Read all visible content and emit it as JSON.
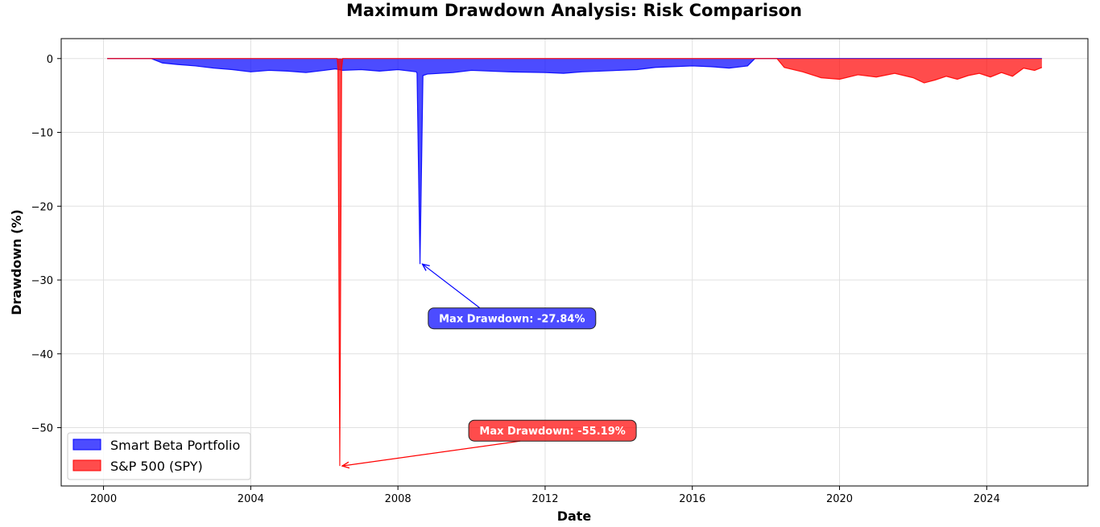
{
  "chart_data": {
    "type": "area",
    "title": "Maximum Drawdown Analysis: Risk Comparison",
    "xlabel": "Date",
    "ylabel": "Drawdown (%)",
    "xlim": [
      1998.85,
      2026.75
    ],
    "ylim": [
      -57.9,
      2.7
    ],
    "x_ticks": [
      2000,
      2004,
      2008,
      2012,
      2016,
      2020,
      2024
    ],
    "x_tick_labels": [
      "2000",
      "2004",
      "2008",
      "2012",
      "2016",
      "2020",
      "2024"
    ],
    "y_ticks": [
      0,
      -10,
      -20,
      -30,
      -40,
      -50
    ],
    "y_tick_labels": [
      "0",
      "−10",
      "−20",
      "−30",
      "−40",
      "−50"
    ],
    "grid": true,
    "legend_position": "lower-left",
    "colors": {
      "smart_beta": "#0000ff",
      "spy": "#ff0000",
      "spy_edge": "#ff0000"
    },
    "series": [
      {
        "name": "Smart Beta Portfolio",
        "key": "smart_beta",
        "x": [
          2000.1,
          2001.3,
          2001.6,
          2002.0,
          2002.5,
          2003.0,
          2003.5,
          2004.0,
          2004.5,
          2005.0,
          2005.5,
          2006.0,
          2006.3,
          2006.5,
          2007.0,
          2007.5,
          2008.0,
          2008.5,
          2008.52,
          2008.6,
          2008.68,
          2008.8,
          2009.5,
          2010.0,
          2011.0,
          2012.0,
          2012.5,
          2013.0,
          2014.0,
          2014.5,
          2015.0,
          2016.0,
          2016.5,
          2017.0,
          2017.5,
          2017.7,
          2025.5
        ],
        "values": [
          0,
          0,
          -0.6,
          -0.8,
          -1.0,
          -1.3,
          -1.5,
          -1.8,
          -1.6,
          -1.7,
          -1.9,
          -1.6,
          -1.4,
          -1.6,
          -1.5,
          -1.7,
          -1.5,
          -1.8,
          -2.0,
          -27.84,
          -2.3,
          -2.1,
          -1.9,
          -1.6,
          -1.8,
          -1.9,
          -2.0,
          -1.8,
          -1.6,
          -1.5,
          -1.2,
          -1.0,
          -1.1,
          -1.3,
          -1.0,
          0,
          0
        ]
      },
      {
        "name": "S&P 500 (SPY)",
        "key": "spy",
        "x": [
          2000.1,
          2006.35,
          2006.37,
          2006.42,
          2006.47,
          2006.5,
          2018.3,
          2018.5,
          2019.0,
          2019.5,
          2020.0,
          2020.5,
          2021.0,
          2021.5,
          2022.0,
          2022.3,
          2022.6,
          2022.9,
          2023.2,
          2023.5,
          2023.8,
          2024.1,
          2024.4,
          2024.7,
          2025.0,
          2025.3,
          2025.5
        ],
        "values": [
          0,
          0,
          -1.3,
          -55.19,
          -1.3,
          0,
          0,
          -1.2,
          -1.8,
          -2.6,
          -2.8,
          -2.2,
          -2.5,
          -2.0,
          -2.6,
          -3.3,
          -2.9,
          -2.4,
          -2.8,
          -2.3,
          -2.0,
          -2.5,
          -1.9,
          -2.4,
          -1.3,
          -1.6,
          -1.2
        ]
      }
    ],
    "annotations": [
      {
        "text": "Max Drawdown: -27.84%",
        "series": "smart_beta",
        "point": [
          2008.6,
          -27.84
        ],
        "text_pos": [
          2011.1,
          -35.2
        ]
      },
      {
        "text": "Max Drawdown: -55.19%",
        "series": "spy",
        "point": [
          2006.42,
          -55.19
        ],
        "text_pos": [
          2012.2,
          -50.4
        ]
      }
    ]
  }
}
